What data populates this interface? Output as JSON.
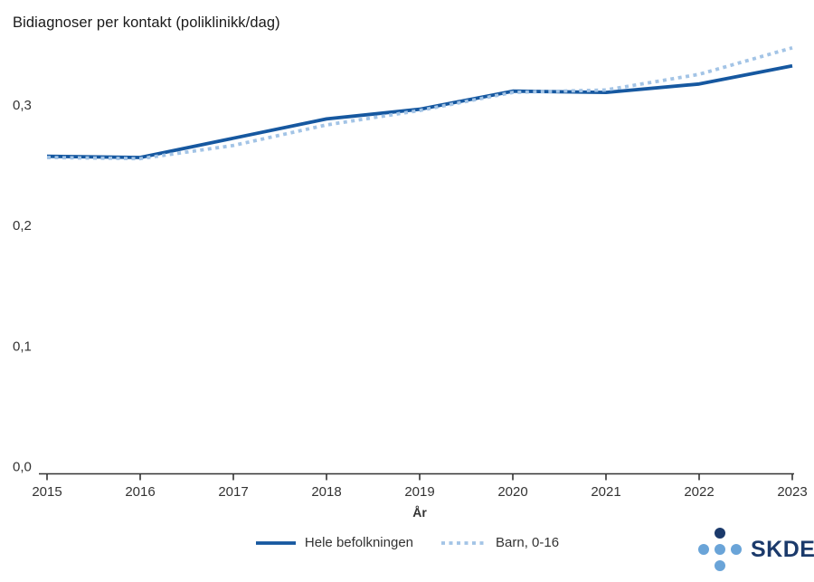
{
  "chart_data": {
    "type": "line",
    "title": "Bidiagnoser per kontakt (poliklinikk/dag)",
    "xlabel": "År",
    "ylabel": "",
    "categories": [
      "2015",
      "2016",
      "2017",
      "2018",
      "2019",
      "2020",
      "2021",
      "2022",
      "2023"
    ],
    "series": [
      {
        "id": "hele-befolkningen",
        "name": "Hele befolkningen",
        "style": "solid",
        "color": "#1658a0",
        "values": [
          0.257,
          0.256,
          0.272,
          0.288,
          0.296,
          0.311,
          0.31,
          0.317,
          0.332
        ]
      },
      {
        "id": "barn-0-16",
        "name": "Barn, 0-16",
        "style": "dotted",
        "color": "#a3c4e6",
        "values": [
          0.256,
          0.255,
          0.266,
          0.283,
          0.295,
          0.31,
          0.312,
          0.325,
          0.347
        ]
      }
    ],
    "ylim": [
      0,
      0.35
    ],
    "yticks": {
      "values": [
        0,
        0.1,
        0.2,
        0.3
      ],
      "labels": [
        "0,0",
        "0,1",
        "0,2",
        "0,3"
      ]
    },
    "grid": false,
    "legend_position": "bottom"
  },
  "logo": {
    "text": "SKDE",
    "dark_color": "#1b3a6b",
    "light_color": "#6aa4d8"
  },
  "colors": {
    "axis": "#333333",
    "tick_text": "#333333",
    "title_text": "#1a1a1a"
  }
}
